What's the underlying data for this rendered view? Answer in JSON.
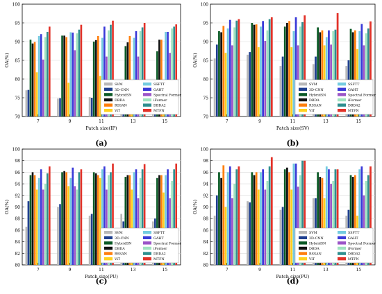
{
  "legend_labels": [
    "SVM",
    "3D-CNN",
    "HybridSN",
    "DBDA",
    "RSSAN",
    "ViT",
    "SSFTT",
    "GAHT",
    "Spectral Former",
    "iFormer",
    "DBDA2",
    "MTFN"
  ],
  "colors": [
    "#b8b8b8",
    "#1f3f8f",
    "#0b5a26",
    "#111111",
    "#ff7f0e",
    "#ffd21f",
    "#73cbe0",
    "#3a3ad8",
    "#9b55c8",
    "#9fe3c0",
    "#2e8f8f",
    "#e23229"
  ],
  "chart_data": [
    {
      "type": "bar",
      "caption": "(a)",
      "xlabel": "Patch size(IP)",
      "ylabel": "OA(%)",
      "ylim": [
        70,
        100
      ],
      "yticks": [
        70,
        75,
        80,
        85,
        90,
        95,
        100
      ],
      "categories": [
        "7",
        "9",
        "11",
        "13",
        "15"
      ],
      "series": [
        {
          "name": "SVM",
          "values": [
            77.0,
            74.8,
            75.2,
            75.0,
            73.0
          ]
        },
        {
          "name": "3D-CNN",
          "values": [
            77.1,
            74.9,
            75.0,
            75.8,
            75.5
          ]
        },
        {
          "name": "HybridSN",
          "values": [
            90.5,
            91.6,
            90.0,
            88.8,
            87.4
          ]
        },
        {
          "name": "DBDA",
          "values": [
            89.5,
            91.6,
            90.4,
            89.8,
            90.5
          ]
        },
        {
          "name": "RSSAN",
          "values": [
            89.9,
            91.2,
            91.5,
            91.5,
            90.5
          ]
        },
        {
          "name": "ViT",
          "values": [
            81.8,
            79.0,
            80.8,
            79.2,
            79.3
          ]
        },
        {
          "name": "SSFTT",
          "values": [
            91.5,
            92.5,
            91.0,
            91.0,
            92.6
          ]
        },
        {
          "name": "GAHT",
          "values": [
            92.0,
            92.4,
            94.0,
            92.8,
            92.6
          ]
        },
        {
          "name": "Spectral Former",
          "values": [
            85.2,
            87.7,
            86.0,
            86.0,
            87.0
          ]
        },
        {
          "name": "iFormer",
          "values": [
            91.2,
            92.2,
            93.0,
            92.8,
            93.5
          ]
        },
        {
          "name": "DBDA2",
          "values": [
            92.6,
            93.2,
            94.5,
            93.8,
            94.0
          ]
        },
        {
          "name": "MTFN",
          "values": [
            94.0,
            94.5,
            95.6,
            95.0,
            94.6
          ]
        }
      ]
    },
    {
      "type": "bar",
      "caption": "(b)",
      "xlabel": "Patch size(SV)",
      "ylabel": "OA(%)",
      "ylim": [
        70,
        100
      ],
      "yticks": [
        70,
        75,
        80,
        85,
        90,
        95,
        100
      ],
      "categories": [
        "7",
        "9",
        "11",
        "13",
        "15"
      ],
      "series": [
        {
          "name": "SVM",
          "values": [
            85.5,
            86.5,
            83.5,
            84.0,
            83.5
          ]
        },
        {
          "name": "3D-CNN",
          "values": [
            89.2,
            87.2,
            86.0,
            86.0,
            85.0
          ]
        },
        {
          "name": "HybridSN",
          "values": [
            92.8,
            95.0,
            94.0,
            93.8,
            93.4
          ]
        },
        {
          "name": "DBDA",
          "values": [
            92.5,
            94.5,
            95.0,
            92.5,
            92.5
          ]
        },
        {
          "name": "RSSAN",
          "values": [
            94.2,
            94.6,
            95.5,
            93.0,
            93.0
          ]
        },
        {
          "name": "ViT",
          "values": [
            87.0,
            88.5,
            88.5,
            89.0,
            88.0
          ]
        },
        {
          "name": "SSFTT",
          "values": [
            93.5,
            94.0,
            92.8,
            91.2,
            92.8
          ]
        },
        {
          "name": "GAHT",
          "values": [
            95.8,
            95.5,
            96.5,
            93.0,
            94.7
          ]
        },
        {
          "name": "Spectral Former",
          "values": [
            89.0,
            90.2,
            89.0,
            89.2,
            89.0
          ]
        },
        {
          "name": "iFormer",
          "values": [
            93.8,
            93.0,
            94.0,
            92.8,
            92.2
          ]
        },
        {
          "name": "DBDA2",
          "values": [
            95.6,
            96.0,
            95.2,
            93.2,
            93.5
          ]
        },
        {
          "name": "MTFN",
          "values": [
            96.0,
            96.5,
            97.0,
            97.6,
            95.4
          ]
        }
      ]
    },
    {
      "type": "bar",
      "caption": "(c)",
      "xlabel": "Patch size(PU)",
      "ylabel": "OA(%)",
      "ylim": [
        80,
        100
      ],
      "yticks": [
        80,
        82,
        84,
        86,
        88,
        90,
        92,
        94,
        96,
        98,
        100
      ],
      "categories": [
        "7",
        "9",
        "11",
        "13",
        "15"
      ],
      "series": [
        {
          "name": "SVM",
          "values": [
            86.6,
            90.0,
            88.5,
            88.8,
            87.5
          ]
        },
        {
          "name": "3D-CNN",
          "values": [
            91.0,
            90.5,
            88.8,
            87.5,
            88.0
          ]
        },
        {
          "name": "HybridSN",
          "values": [
            95.5,
            96.0,
            96.0,
            95.2,
            95.0
          ]
        },
        {
          "name": "DBDA",
          "values": [
            96.0,
            96.2,
            95.8,
            95.5,
            95.5
          ]
        },
        {
          "name": "RSSAN",
          "values": [
            95.5,
            96.0,
            95.5,
            95.5,
            95.5
          ]
        },
        {
          "name": "ViT",
          "values": [
            93.0,
            93.6,
            95.0,
            93.0,
            92.5
          ]
        },
        {
          "name": "SSFTT",
          "values": [
            95.0,
            95.0,
            96.5,
            96.0,
            95.5
          ]
        },
        {
          "name": "GAHT",
          "values": [
            96.5,
            96.8,
            97.0,
            96.5,
            96.5
          ]
        },
        {
          "name": "Spectral Former",
          "values": [
            93.0,
            93.6,
            93.0,
            91.5,
            91.5
          ]
        },
        {
          "name": "iFormer",
          "values": [
            94.0,
            93.0,
            95.5,
            95.0,
            94.5
          ]
        },
        {
          "name": "DBDA2",
          "values": [
            95.8,
            96.0,
            96.0,
            96.5,
            96.5
          ]
        },
        {
          "name": "MTFN",
          "values": [
            97.0,
            96.5,
            97.5,
            97.4,
            97.5
          ]
        }
      ]
    },
    {
      "type": "bar",
      "caption": "(d)",
      "xlabel": "Patch size(PU)",
      "ylabel": "OA(%)",
      "ylim": [
        80,
        100
      ],
      "yticks": [
        80,
        82,
        84,
        86,
        88,
        90,
        92,
        94,
        96,
        98,
        100
      ],
      "categories": [
        "7",
        "9",
        "11",
        "13",
        "15"
      ],
      "series": [
        {
          "name": "SVM",
          "values": [
            88.5,
            91.0,
            89.5,
            91.5,
            88.5
          ]
        },
        {
          "name": "3D-CNN",
          "values": [
            92.0,
            90.8,
            90.0,
            91.5,
            89.5
          ]
        },
        {
          "name": "HybridSN",
          "values": [
            96.0,
            96.0,
            96.5,
            96.0,
            95.5
          ]
        },
        {
          "name": "DBDA",
          "values": [
            95.0,
            95.5,
            96.8,
            95.2,
            95.2
          ]
        },
        {
          "name": "RSSAN",
          "values": [
            97.2,
            96.0,
            96.0,
            95.0,
            95.5
          ]
        },
        {
          "name": "ViT",
          "values": [
            90.0,
            93.0,
            93.0,
            91.5,
            88.5
          ]
        },
        {
          "name": "SSFTT",
          "values": [
            96.0,
            96.0,
            97.5,
            97.0,
            96.5
          ]
        },
        {
          "name": "GAHT",
          "values": [
            97.0,
            96.5,
            97.5,
            96.5,
            97.0
          ]
        },
        {
          "name": "Spectral Former",
          "values": [
            91.5,
            93.0,
            93.5,
            94.0,
            92.0
          ]
        },
        {
          "name": "iFormer",
          "values": [
            94.0,
            94.5,
            95.5,
            94.5,
            94.5
          ]
        },
        {
          "name": "DBDA2",
          "values": [
            96.5,
            97.0,
            98.0,
            96.5,
            95.5
          ]
        },
        {
          "name": "MTFN",
          "values": [
            97.0,
            98.6,
            98.0,
            96.5,
            97.0
          ]
        }
      ]
    }
  ]
}
